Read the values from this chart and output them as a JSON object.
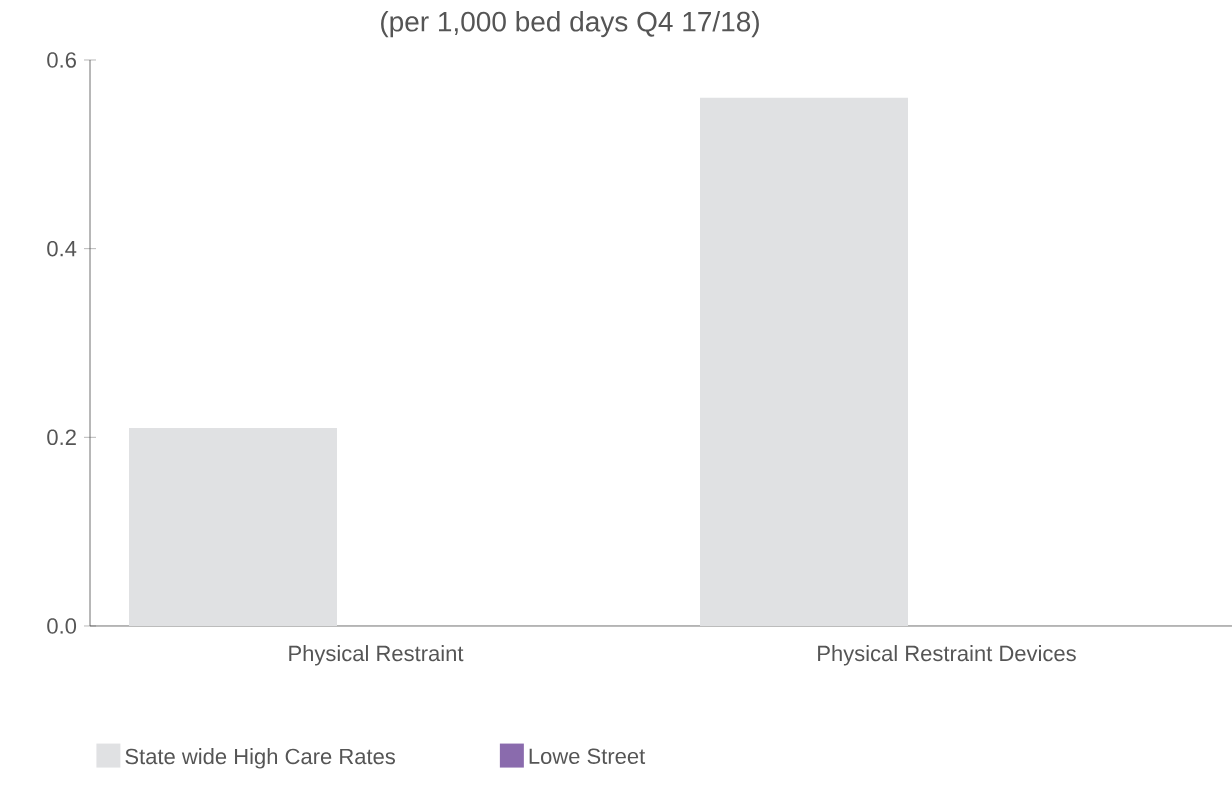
{
  "chart_data": {
    "type": "bar",
    "subtitle": "(per 1,000 bed days Q4 17/18)",
    "categories": [
      "Physical Restraint",
      "Physical Restraint Devices"
    ],
    "series": [
      {
        "name": "State wide High Care Rates",
        "color": "#e0e1e3",
        "values": [
          0.21,
          0.56
        ]
      },
      {
        "name": "Lowe Street",
        "color": "#8a6bad",
        "values": [
          0,
          0
        ]
      }
    ],
    "ylim": [
      0,
      0.6
    ],
    "yticks": [
      {
        "value": 0,
        "label": "0.0"
      },
      0.2,
      0.4,
      0.6
    ],
    "legend": "bottom left"
  }
}
